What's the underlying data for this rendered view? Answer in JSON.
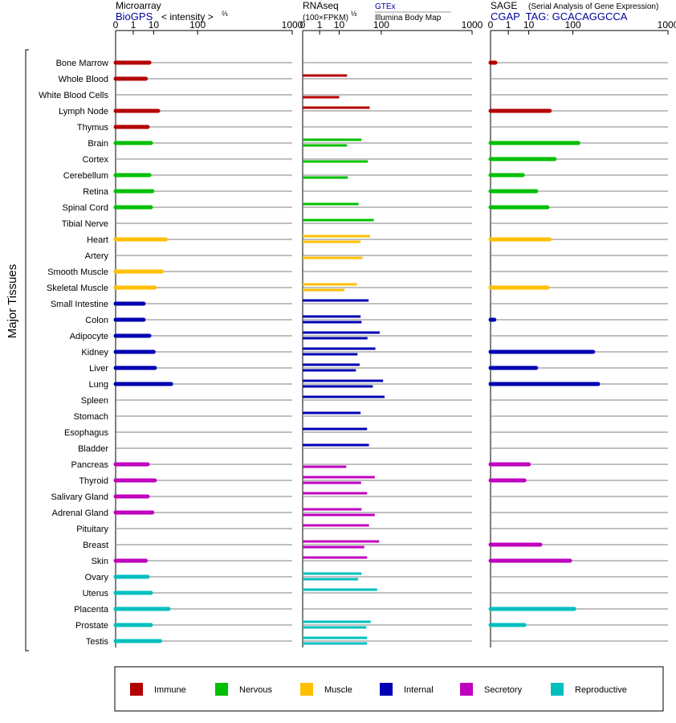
{
  "colors": {
    "Immune": "#b30000",
    "Nervous": "#00bf00",
    "Muscle": "#ffbf00",
    "Internal": "#0000b3",
    "Secretory": "#bf00bf",
    "Reproductive": "#00bfbf",
    "axis": "#000000",
    "gridline": "#808080",
    "link_text": "#00009c"
  },
  "side_label": "Major Tissues",
  "panels": {
    "microarray": {
      "title": "Microarray",
      "subtitle": "BioGPS",
      "scale_label": "< intensity >",
      "scale_exponent": "⅔",
      "ticks": [
        "0",
        "1",
        "10",
        "100",
        "1000"
      ]
    },
    "rnaseq": {
      "title": "RNAseq",
      "unit_label": "(100×FPKM)",
      "unit_exponent": "½",
      "source_primary": "GTEx",
      "source_secondary": "Illumina Body Map",
      "ticks": [
        "0",
        "1",
        "10",
        "100",
        "1000"
      ]
    },
    "sage": {
      "title": "SAGE",
      "description": "(Serial Analysis of Gene Expression)",
      "tag_line": "CGAP  TAG: GCACAGGCCA",
      "ticks": [
        "0",
        "1",
        "10",
        "100",
        "1000"
      ]
    }
  },
  "legend": [
    {
      "label": "Immune",
      "color": "#b30000"
    },
    {
      "label": "Nervous",
      "color": "#00bf00"
    },
    {
      "label": "Muscle",
      "color": "#ffbf00"
    },
    {
      "label": "Internal",
      "color": "#0000b3"
    },
    {
      "label": "Secretory",
      "color": "#bf00bf"
    },
    {
      "label": "Reproductive",
      "color": "#00bfbf"
    }
  ],
  "chart_data": {
    "type": "bar",
    "orientation": "horizontal",
    "x_scale": "power (value^(1/3))",
    "xlim": [
      0,
      1000
    ],
    "categories": [
      "Bone Marrow",
      "Whole Blood",
      "White Blood Cells",
      "Lymph Node",
      "Thymus",
      "Brain",
      "Cortex",
      "Cerebellum",
      "Retina",
      "Spinal Cord",
      "Tibial Nerve",
      "Heart",
      "Artery",
      "Smooth Muscle",
      "Skeletal Muscle",
      "Small Intestine",
      "Colon",
      "Adipocyte",
      "Kidney",
      "Liver",
      "Lung",
      "Spleen",
      "Stomach",
      "Esophagus",
      "Bladder",
      "Pancreas",
      "Thyroid",
      "Salivary Gland",
      "Adrenal Gland",
      "Pituitary",
      "Breast",
      "Skin",
      "Ovary",
      "Uterus",
      "Placenta",
      "Prostate",
      "Testis"
    ],
    "groups": [
      "Immune",
      "Immune",
      "Immune",
      "Immune",
      "Immune",
      "Nervous",
      "Nervous",
      "Nervous",
      "Nervous",
      "Nervous",
      "Nervous",
      "Muscle",
      "Muscle",
      "Muscle",
      "Muscle",
      "Internal",
      "Internal",
      "Internal",
      "Internal",
      "Internal",
      "Internal",
      "Internal",
      "Internal",
      "Internal",
      "Internal",
      "Secretory",
      "Secretory",
      "Secretory",
      "Secretory",
      "Secretory",
      "Secretory",
      "Secretory",
      "Reproductive",
      "Reproductive",
      "Reproductive",
      "Reproductive",
      "Reproductive"
    ],
    "series": [
      {
        "name": "Microarray",
        "values": [
          7,
          5,
          null,
          14,
          6,
          8,
          null,
          7,
          9,
          8,
          null,
          23,
          null,
          18,
          11,
          4,
          4,
          7,
          10,
          11,
          31,
          null,
          null,
          null,
          null,
          6,
          11,
          6,
          9,
          null,
          null,
          5,
          6,
          8,
          27,
          8,
          16
        ]
      },
      {
        "name": "GTEx",
        "values": [
          null,
          18,
          null,
          62,
          null,
          42,
          null,
          null,
          null,
          36,
          74,
          63,
          null,
          null,
          33,
          59,
          40,
          94,
          79,
          38,
          107,
          113,
          40,
          55,
          60,
          null,
          77,
          55,
          42,
          60,
          92,
          55,
          42,
          85,
          null,
          65,
          55
        ]
      },
      {
        "name": "Illumina Body Map",
        "values": [
          null,
          null,
          10,
          null,
          null,
          18,
          57,
          19,
          null,
          null,
          null,
          40,
          44,
          null,
          15,
          null,
          42,
          56,
          34,
          31,
          71,
          null,
          null,
          null,
          null,
          17,
          41,
          null,
          77,
          null,
          48,
          null,
          35,
          null,
          null,
          53,
          55
        ]
      },
      {
        "name": "SAGE",
        "values": [
          0.02,
          null,
          null,
          37,
          null,
          121,
          47,
          6,
          17,
          33,
          null,
          37,
          null,
          null,
          33,
          null,
          0.01,
          null,
          193,
          17,
          223,
          null,
          null,
          null,
          null,
          10,
          7,
          null,
          null,
          null,
          22,
          90,
          null,
          null,
          105,
          7,
          null
        ]
      }
    ]
  }
}
